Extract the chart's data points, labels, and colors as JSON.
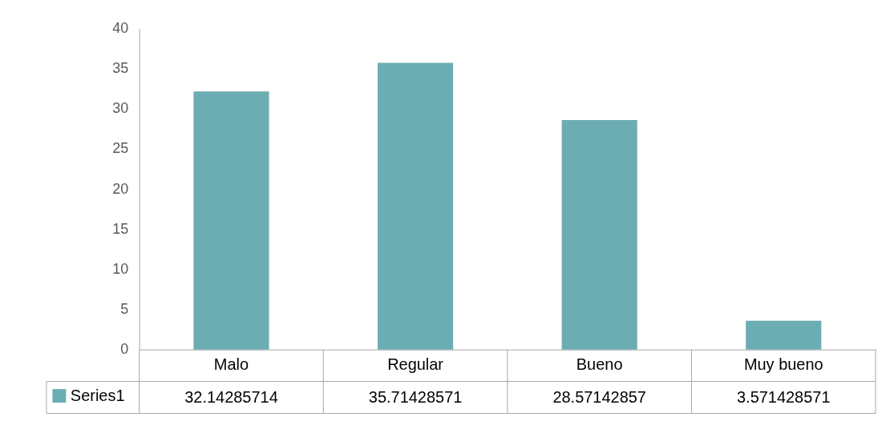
{
  "chart_data": {
    "type": "bar",
    "categories": [
      "Malo",
      "Regular",
      "Bueno",
      "Muy bueno"
    ],
    "series": [
      {
        "name": "Series1",
        "color": "#6badb3",
        "values": [
          32.14285714,
          35.71428571,
          28.57142857,
          3.571428571
        ]
      }
    ],
    "ylim": [
      0,
      40
    ],
    "yticks": [
      0,
      5,
      10,
      15,
      20,
      25,
      30,
      35,
      40
    ],
    "grid": false,
    "legend": "bottom left",
    "data_labels": true
  }
}
